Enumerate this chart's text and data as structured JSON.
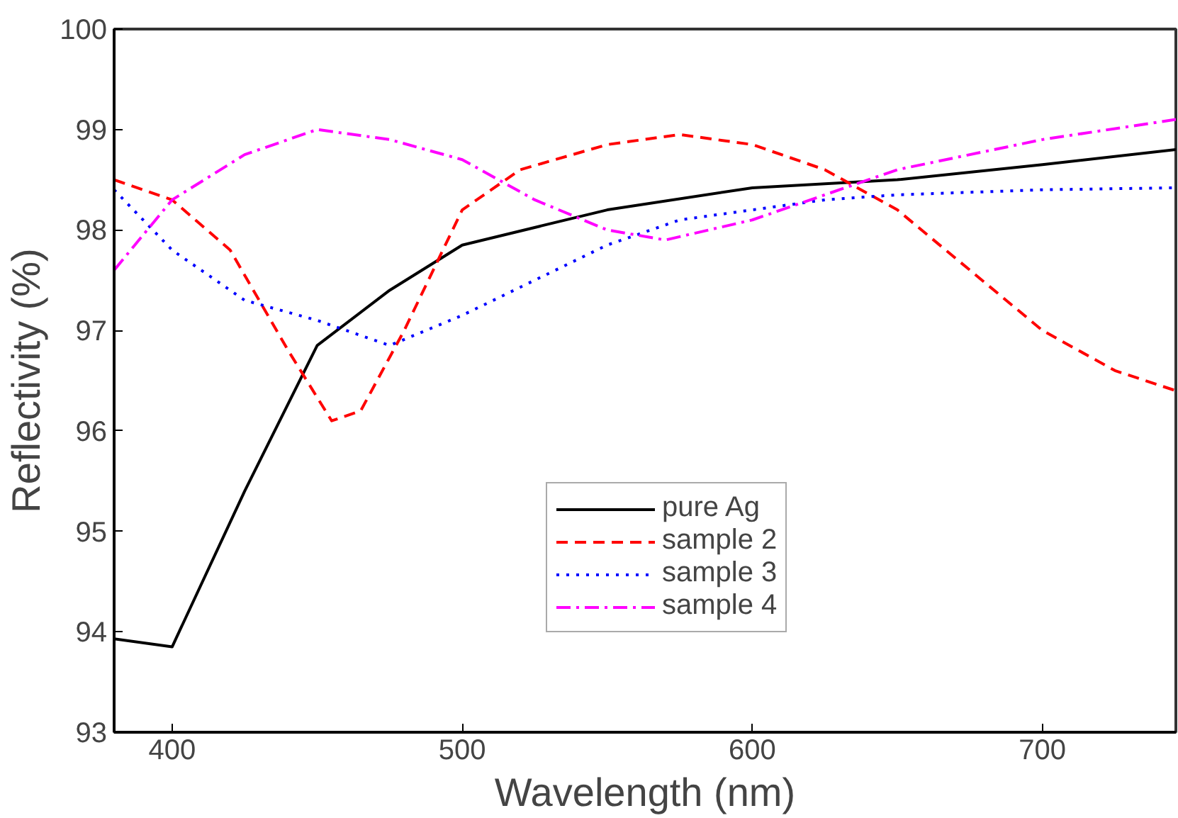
{
  "chart_data": {
    "type": "line",
    "xlabel": "Wavelength (nm)",
    "ylabel": "Reflectivity (%)",
    "xlim": [
      380,
      746
    ],
    "ylim": [
      93,
      100
    ],
    "xticks": [
      400,
      500,
      600,
      700
    ],
    "yticks": [
      93,
      94,
      95,
      96,
      97,
      98,
      99,
      100
    ],
    "grid": false,
    "legend": "right",
    "series": [
      {
        "name": "pure Ag",
        "color": "#000000",
        "line_style": "solid",
        "x": [
          380,
          400,
          425,
          450,
          475,
          500,
          550,
          600,
          650,
          700,
          746
        ],
        "values": [
          93.93,
          93.85,
          95.4,
          96.85,
          97.4,
          97.85,
          98.2,
          98.42,
          98.5,
          98.65,
          98.8
        ]
      },
      {
        "name": "sample 2",
        "color": "#ff0000",
        "line_style": "dashed",
        "x": [
          380,
          400,
          420,
          440,
          455,
          465,
          480,
          500,
          520,
          550,
          575,
          600,
          625,
          650,
          675,
          700,
          725,
          746
        ],
        "values": [
          98.5,
          98.3,
          97.8,
          96.8,
          96.1,
          96.2,
          97.0,
          98.2,
          98.6,
          98.85,
          98.95,
          98.85,
          98.6,
          98.2,
          97.6,
          97.0,
          96.6,
          96.4
        ]
      },
      {
        "name": "sample 3",
        "color": "#0000ff",
        "line_style": "dotted",
        "x": [
          380,
          400,
          425,
          450,
          475,
          500,
          525,
          550,
          575,
          600,
          625,
          650,
          700,
          746
        ],
        "values": [
          98.4,
          97.8,
          97.3,
          97.1,
          96.85,
          97.15,
          97.5,
          97.85,
          98.1,
          98.2,
          98.3,
          98.35,
          98.4,
          98.42
        ]
      },
      {
        "name": "sample 4",
        "color": "#ff00ff",
        "line_style": "dashdot",
        "x": [
          380,
          400,
          425,
          450,
          475,
          500,
          525,
          550,
          570,
          600,
          625,
          650,
          700,
          746
        ],
        "values": [
          97.6,
          98.3,
          98.75,
          99.0,
          98.9,
          98.7,
          98.3,
          98.0,
          97.9,
          98.1,
          98.35,
          98.6,
          98.9,
          99.1
        ]
      }
    ]
  }
}
